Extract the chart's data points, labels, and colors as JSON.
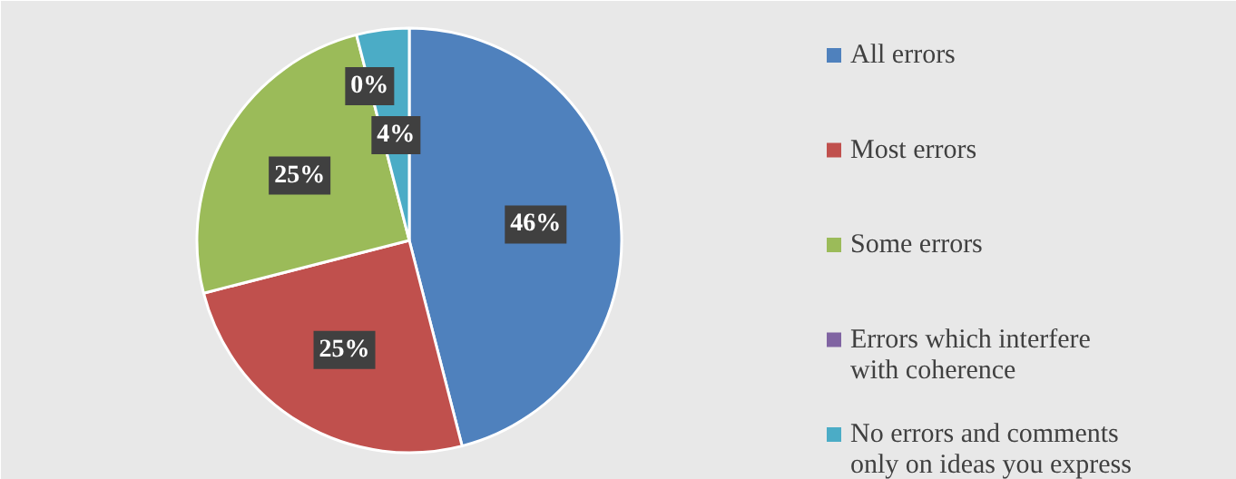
{
  "chart_data": {
    "type": "pie",
    "categories": [
      "All errors",
      "Most errors",
      "Some errors",
      "Errors which interfere with coherence",
      "No errors and comments only on ideas you express"
    ],
    "values": [
      46,
      25,
      25,
      0,
      4
    ],
    "colors": [
      "#4f81bd",
      "#c0504d",
      "#9bbb59",
      "#8064a2",
      "#4bacc6"
    ],
    "value_labels": [
      "46%",
      "25%",
      "25%",
      "0%",
      "4%"
    ],
    "legend": "right"
  }
}
